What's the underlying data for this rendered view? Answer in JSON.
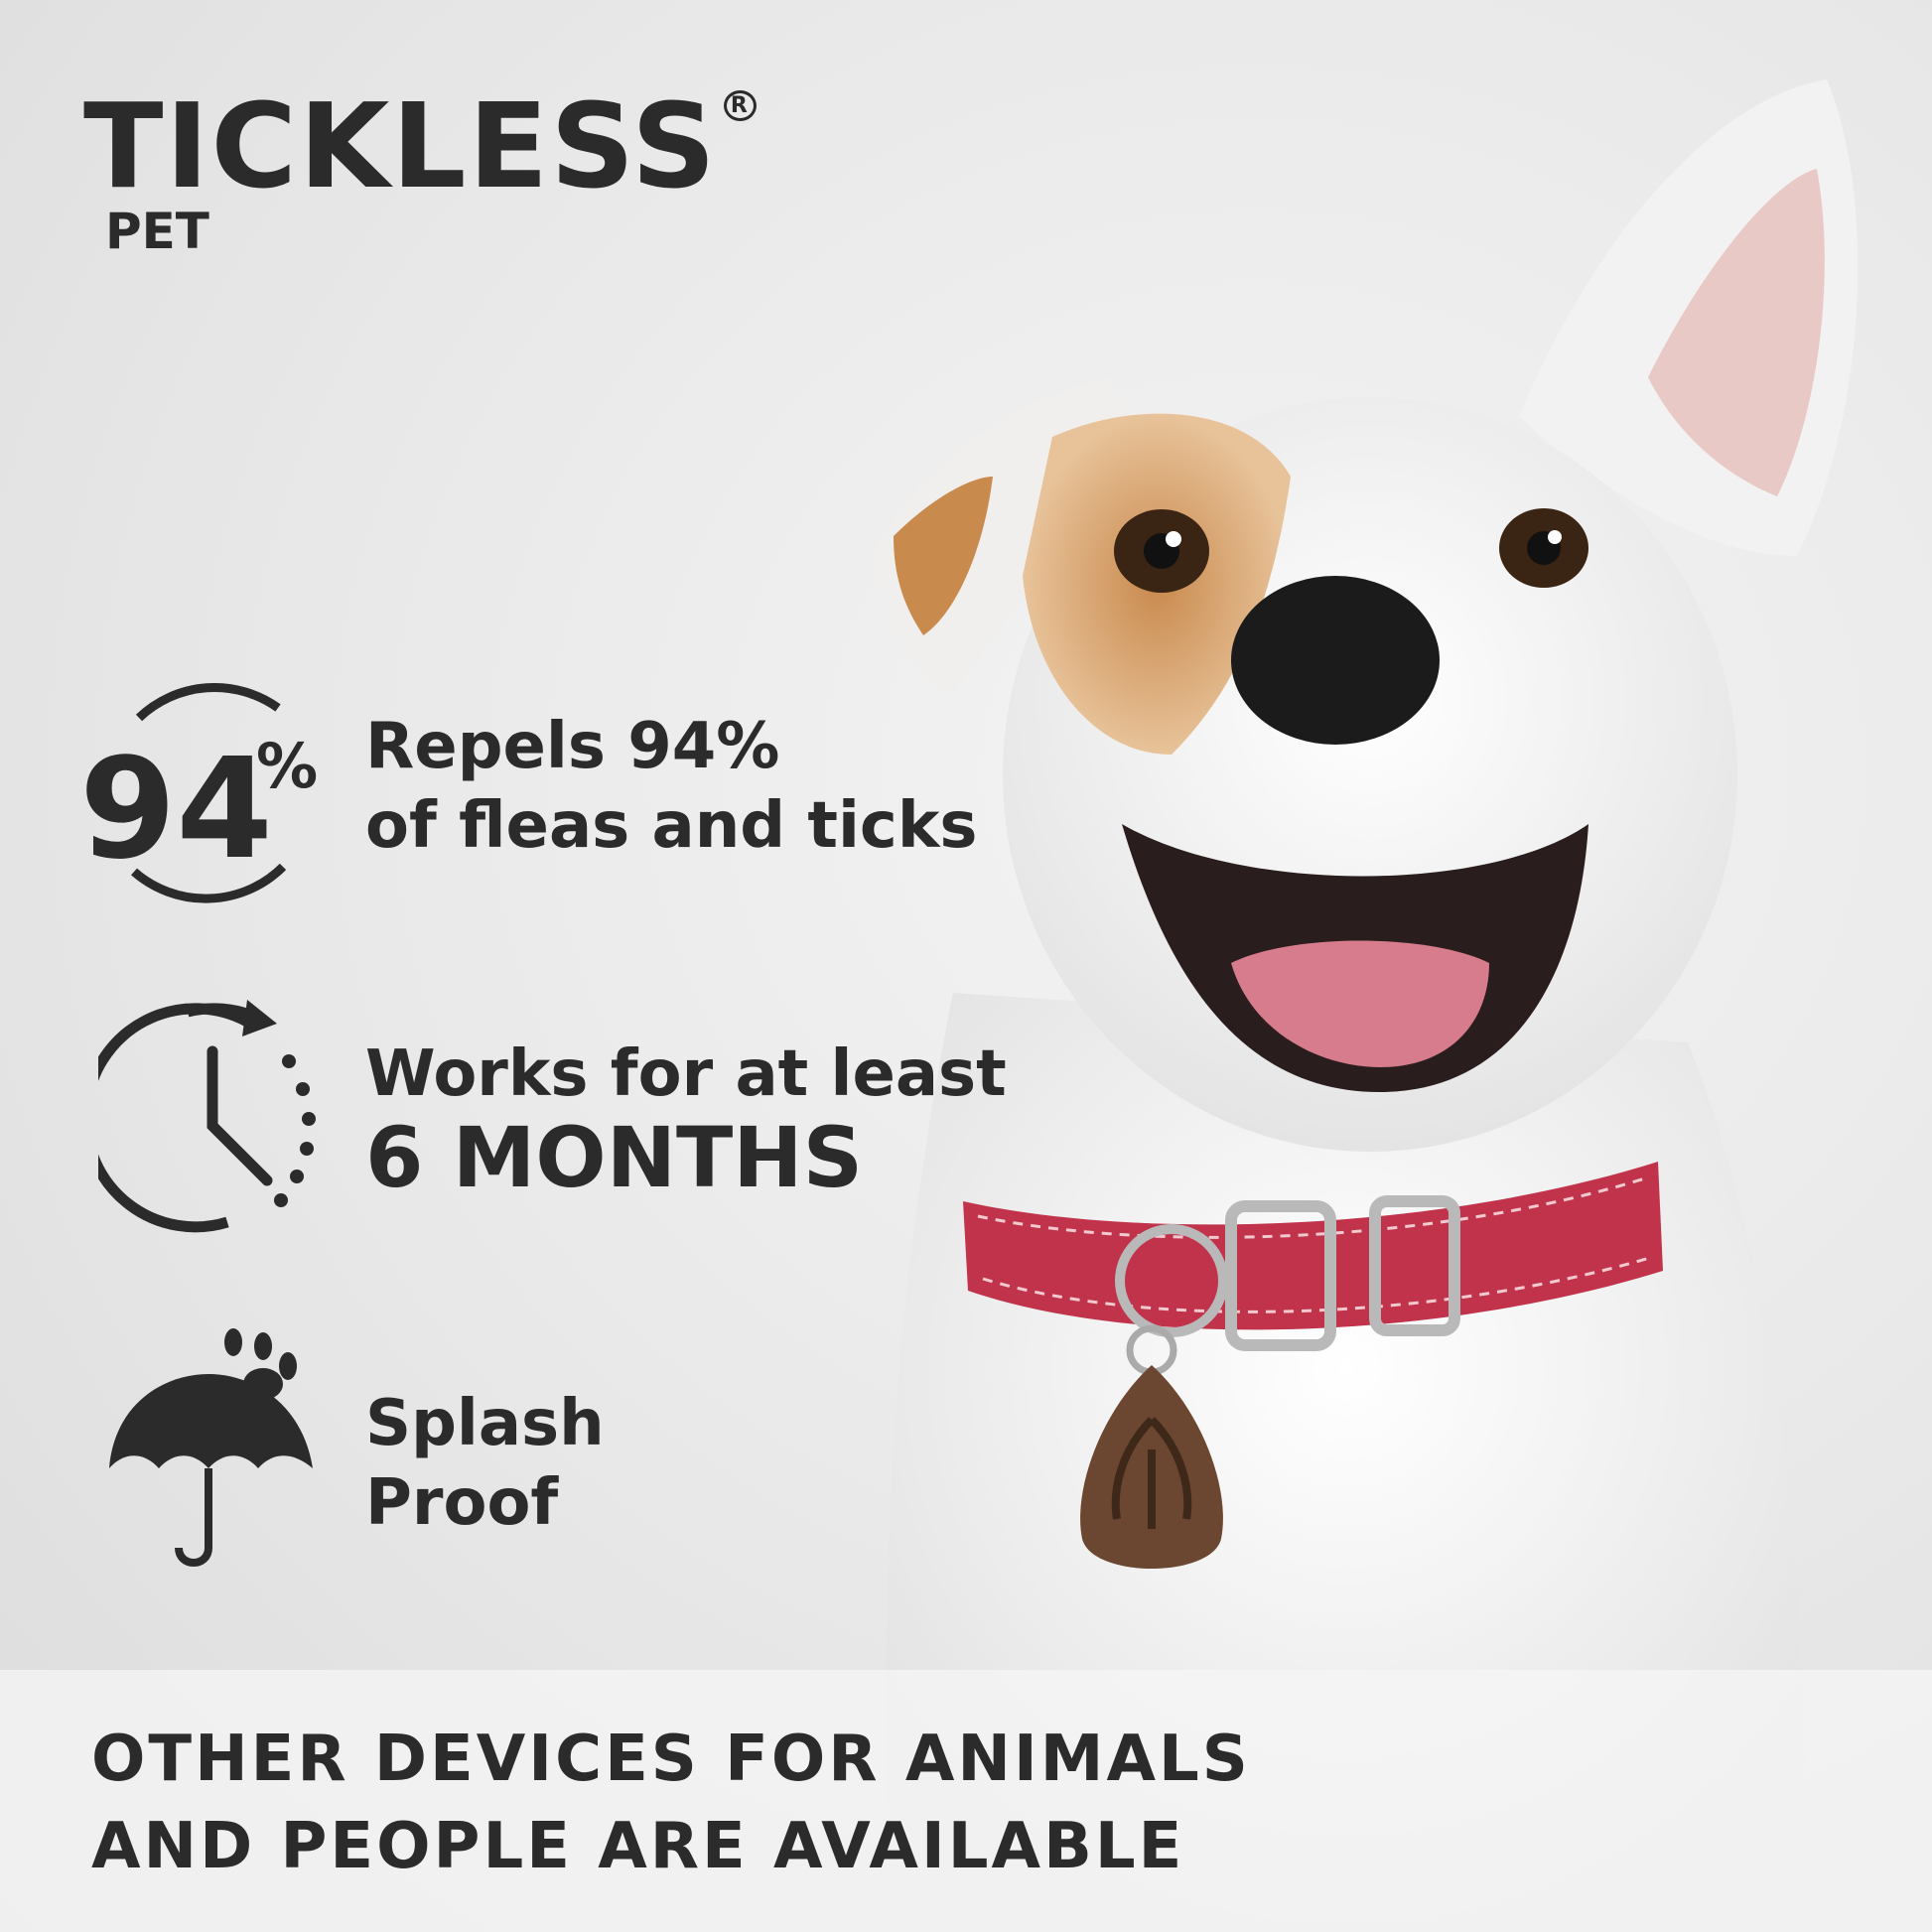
{
  "brand": {
    "name": "TICKLESS",
    "registered": "R",
    "sub": "PET"
  },
  "features": [
    {
      "icon": "percent-circle-icon",
      "badge": "94",
      "badge_unit": "%",
      "line1": "Repels 94%",
      "line2": "of fleas and ticks"
    },
    {
      "icon": "clock-icon",
      "line1": "Works for at least",
      "line2": "6 MONTHS"
    },
    {
      "icon": "umbrella-icon",
      "line1": "Splash",
      "line2": "Proof"
    }
  ],
  "footer": {
    "line1": "OTHER DEVICES FOR ANIMALS",
    "line2": "AND PEOPLE ARE AVAILABLE"
  },
  "colors": {
    "text": "#2b2b2b",
    "collar": "#c0334a",
    "tag": "#6b4630"
  }
}
